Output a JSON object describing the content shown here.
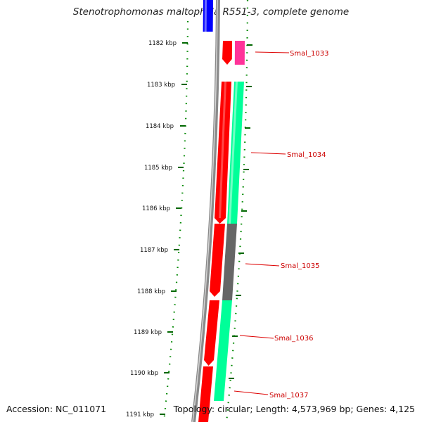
{
  "title": "Stenotrophomonas maltophilia R551-3, complete genome",
  "footer": {
    "accession": "Accession: NC_011071",
    "topology": "Topology: circular; Length: 4,573,969 bp; Genes: 4,125"
  },
  "ruler_ticks": [
    {
      "label": "1182 kbp",
      "kbp": 1182
    },
    {
      "label": "1183 kbp",
      "kbp": 1183
    },
    {
      "label": "1184 kbp",
      "kbp": 1184
    },
    {
      "label": "1185 kbp",
      "kbp": 1185
    },
    {
      "label": "1186 kbp",
      "kbp": 1186
    },
    {
      "label": "1187 kbp",
      "kbp": 1187
    },
    {
      "label": "1188 kbp",
      "kbp": 1188
    },
    {
      "label": "1189 kbp",
      "kbp": 1189
    },
    {
      "label": "1190 kbp",
      "kbp": 1190
    },
    {
      "label": "1191 kbp",
      "kbp": 1191
    }
  ],
  "gene_labels": [
    {
      "label": "Smal_1033"
    },
    {
      "label": "Smal_1034"
    },
    {
      "label": "Smal_1035"
    },
    {
      "label": "Smal_1036"
    },
    {
      "label": "Smal_1037"
    }
  ],
  "colors": {
    "forward_cds": "#ff0000",
    "reverse_orf_pink": "#ff3399",
    "reverse_orf_green": "#00ff99",
    "reverse_orf_gray": "#666666",
    "top_feature_blue": "#0000ff",
    "backbone": "#888888",
    "tick_green": "#006600",
    "label_red": "#cc0000"
  }
}
